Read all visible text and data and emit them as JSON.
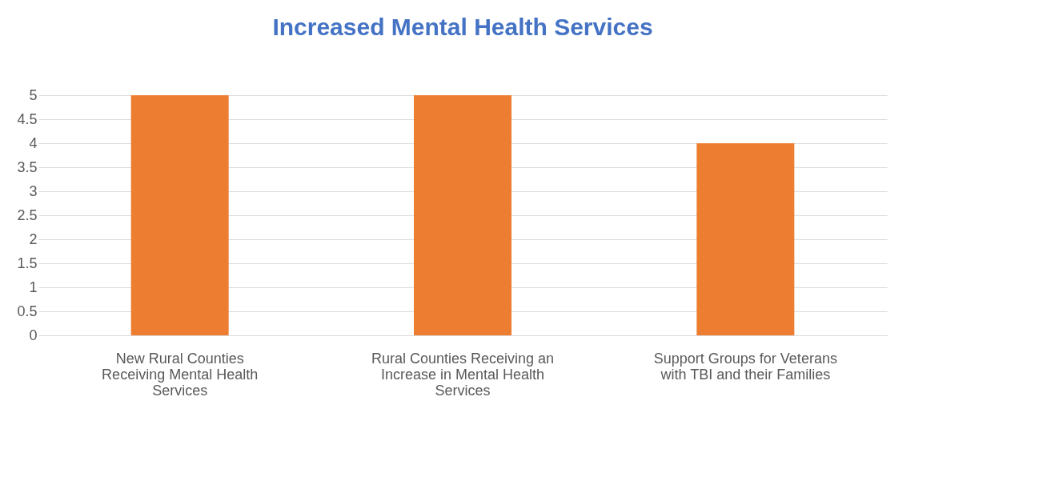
{
  "chart_data": {
    "type": "bar",
    "title": "Increased Mental Health Services",
    "categories": [
      "New Rural Counties Receiving Mental Health Services",
      "Rural Counties Receiving an Increase in Mental Health Services",
      "Support Groups for Veterans with TBI and their Families"
    ],
    "values": [
      5,
      5,
      4
    ],
    "color": "#ed7d31",
    "ylim": [
      0,
      5
    ],
    "yticks": [
      0,
      0.5,
      1,
      1.5,
      2,
      2.5,
      3,
      3.5,
      4,
      4.5,
      5
    ],
    "grid": "y"
  }
}
